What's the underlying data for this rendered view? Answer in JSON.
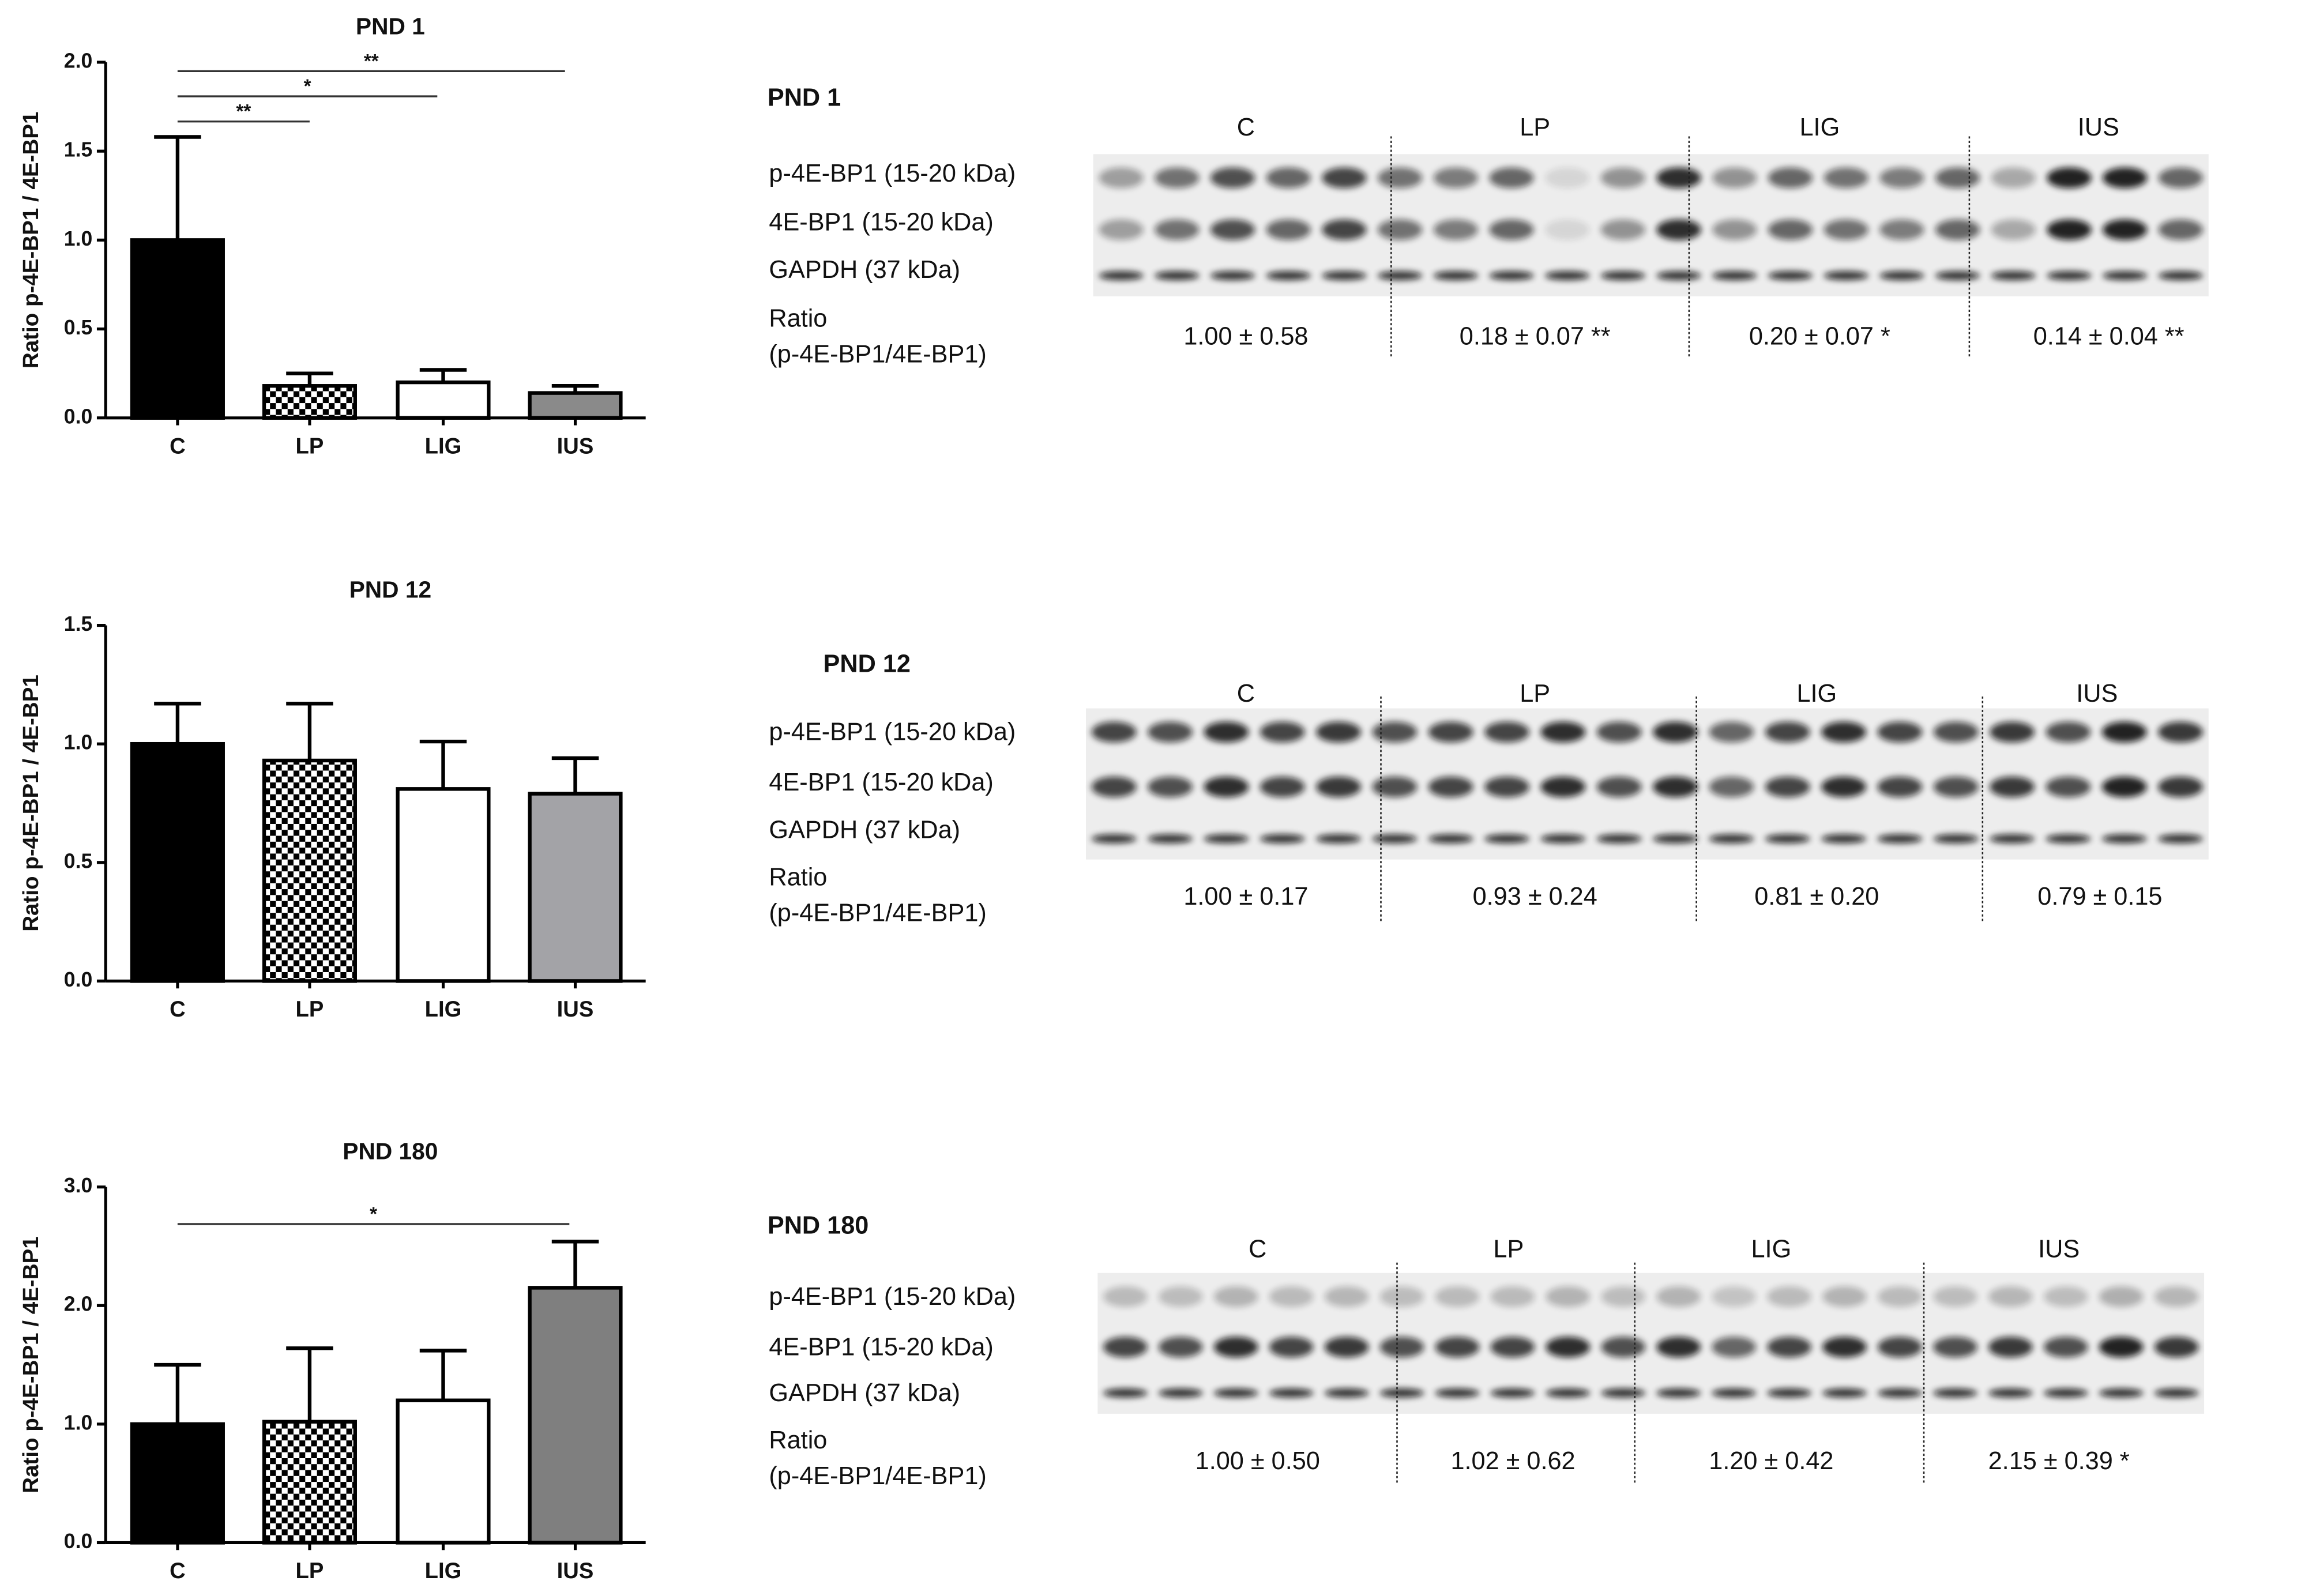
{
  "chart_data": [
    {
      "type": "bar",
      "title": "PND 1",
      "ylabel": "Ratio p-4E-BP1 / 4E-BP1",
      "categories": [
        "C",
        "LP",
        "LIG",
        "IUS"
      ],
      "values": [
        1.0,
        0.18,
        0.2,
        0.14
      ],
      "errors": [
        0.58,
        0.07,
        0.07,
        0.04
      ],
      "fills": [
        "#000000",
        "checkerboard",
        "#ffffff",
        "#8a8a8a"
      ],
      "ylim": [
        0,
        2
      ],
      "yticks": [
        {
          "value": 0,
          "label": "0.0"
        },
        0.5,
        {
          "value": 1,
          "label": "1.0"
        },
        1.5,
        {
          "value": 2,
          "label": "2.0"
        }
      ],
      "significance": [
        "**",
        "*",
        "**"
      ]
    },
    {
      "type": "bar",
      "title": "PND 12",
      "ylabel": "Ratio p-4E-BP1 / 4E-BP1",
      "categories": [
        "C",
        "LP",
        "LIG",
        "IUS"
      ],
      "values": [
        1.0,
        0.93,
        0.81,
        0.79
      ],
      "errors": [
        0.17,
        0.24,
        0.2,
        0.15
      ],
      "fills": [
        "#000000",
        "checkerboard",
        "#ffffff",
        "#a3a3a7"
      ],
      "ylim": [
        0,
        1.5
      ],
      "yticks": [
        {
          "value": 0,
          "label": "0.0"
        },
        0.5,
        {
          "value": 1,
          "label": "1.0"
        },
        1.5
      ],
      "significance": []
    },
    {
      "type": "bar",
      "title": "PND 180",
      "ylabel": "Ratio p-4E-BP1 / 4E-BP1",
      "categories": [
        "C",
        "LP",
        "LIG",
        "IUS"
      ],
      "values": [
        1.0,
        1.02,
        1.2,
        2.15
      ],
      "errors": [
        0.5,
        0.62,
        0.42,
        0.39
      ],
      "fills": [
        "#000000",
        "checkerboard",
        "#ffffff",
        "#7f7f7f"
      ],
      "ylim": [
        0,
        3
      ],
      "yticks": [
        {
          "value": 0,
          "label": "0.0"
        },
        {
          "value": 1,
          "label": "1.0"
        },
        {
          "value": 2,
          "label": "2.0"
        },
        {
          "value": 3,
          "label": "3.0"
        }
      ],
      "significance": [
        "*"
      ]
    }
  ],
  "blots": [
    {
      "title": "PND 1",
      "groups": [
        "C",
        "LP",
        "LIG",
        "IUS"
      ],
      "rows": [
        "p-4E-BP1 (15-20 kDa)",
        "4E-BP1 (15-20 kDa)",
        "GAPDH (37 kDa)"
      ],
      "ratio_label": [
        "Ratio",
        "(p-4E-BP1/4E-BP1)"
      ],
      "ratios": [
        "1.00 ± 0.58",
        "0.18 ± 0.07 **",
        "0.20 ± 0.07 *",
        "0.14 ± 0.04 **"
      ]
    },
    {
      "title": "PND 12",
      "groups": [
        "C",
        "LP",
        "LIG",
        "IUS"
      ],
      "rows": [
        "p-4E-BP1 (15-20 kDa)",
        "4E-BP1 (15-20 kDa)",
        "GAPDH (37 kDa)"
      ],
      "ratio_label": [
        "Ratio",
        "(p-4E-BP1/4E-BP1)"
      ],
      "ratios": [
        "1.00 ± 0.17",
        "0.93 ± 0.24",
        "0.81 ± 0.20",
        "0.79 ± 0.15"
      ]
    },
    {
      "title": "PND 180",
      "groups": [
        "C",
        "LP",
        "LIG",
        "IUS"
      ],
      "rows": [
        "p-4E-BP1 (15-20 kDa)",
        "4E-BP1 (15-20 kDa)",
        "GAPDH (37 kDa)"
      ],
      "ratio_label": [
        "Ratio",
        "(p-4E-BP1/4E-BP1)"
      ],
      "ratios": [
        "1.00 ± 0.50",
        "1.02 ± 0.62",
        "1.20 ± 0.42",
        "2.15 ± 0.39 *"
      ]
    }
  ]
}
